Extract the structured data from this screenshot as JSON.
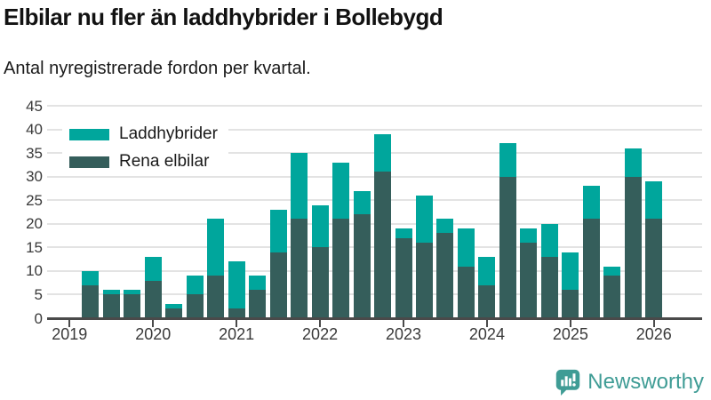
{
  "title": "Elbilar nu fler än laddhybrider i Bollebygd",
  "subtitle": "Antal nyregistrerade fordon per kvartal.",
  "branding": {
    "logo_text": "Newsworthy",
    "logo_icon": "bar-chart-speech-bubble-icon",
    "color": "#3f9c95"
  },
  "colors": {
    "laddhybrider": "#00A69C",
    "rena_elbilar": "#355E5B",
    "gridline": "#E3E3E3",
    "axis": "#4A4A4A"
  },
  "chart_data": {
    "type": "bar",
    "stacked": true,
    "title": "Elbilar nu fler än laddhybrider i Bollebygd",
    "subtitle": "Antal nyregistrerade fordon per kvartal.",
    "xlabel": "",
    "ylabel": "",
    "ylim": [
      0,
      45
    ],
    "yticks": [
      0,
      5,
      10,
      15,
      20,
      25,
      30,
      35,
      40,
      45
    ],
    "xticks": [
      "2019",
      "2020",
      "2021",
      "2022",
      "2023",
      "2024",
      "2025",
      "2026"
    ],
    "grid": true,
    "legend_position": "top-left-inside",
    "legend": [
      {
        "label": "Laddhybrider",
        "color": "#00A69C"
      },
      {
        "label": "Rena elbilar",
        "color": "#355E5B"
      }
    ],
    "x": [
      "2019 Q2",
      "2019 Q3",
      "2019 Q4",
      "2020 Q1",
      "2020 Q2",
      "2020 Q3",
      "2020 Q4",
      "2021 Q1",
      "2021 Q2",
      "2021 Q3",
      "2021 Q4",
      "2022 Q1",
      "2022 Q2",
      "2022 Q3",
      "2022 Q4",
      "2023 Q1",
      "2023 Q2",
      "2023 Q3",
      "2023 Q4",
      "2024 Q1",
      "2024 Q2",
      "2024 Q3",
      "2024 Q4",
      "2025 Q1",
      "2025 Q2",
      "2025 Q3",
      "2025 Q4",
      "2026 Q1"
    ],
    "series": [
      {
        "name": "Rena elbilar",
        "color": "#355E5B",
        "values": [
          7,
          5,
          5,
          8,
          2,
          5,
          9,
          2,
          6,
          14,
          21,
          15,
          21,
          22,
          31,
          17,
          16,
          18,
          11,
          7,
          30,
          16,
          13,
          6,
          21,
          9,
          30,
          21
        ]
      },
      {
        "name": "Laddhybrider",
        "color": "#00A69C",
        "values": [
          3,
          1,
          1,
          5,
          1,
          4,
          12,
          10,
          3,
          9,
          14,
          9,
          12,
          5,
          8,
          2,
          10,
          3,
          8,
          6,
          7,
          3,
          7,
          8,
          7,
          2,
          6,
          8
        ]
      }
    ],
    "totals": [
      10,
      6,
      6,
      13,
      3,
      9,
      21,
      12,
      9,
      23,
      35,
      24,
      33,
      27,
      39,
      19,
      26,
      21,
      19,
      13,
      37,
      19,
      20,
      14,
      28,
      11,
      36,
      29
    ]
  }
}
